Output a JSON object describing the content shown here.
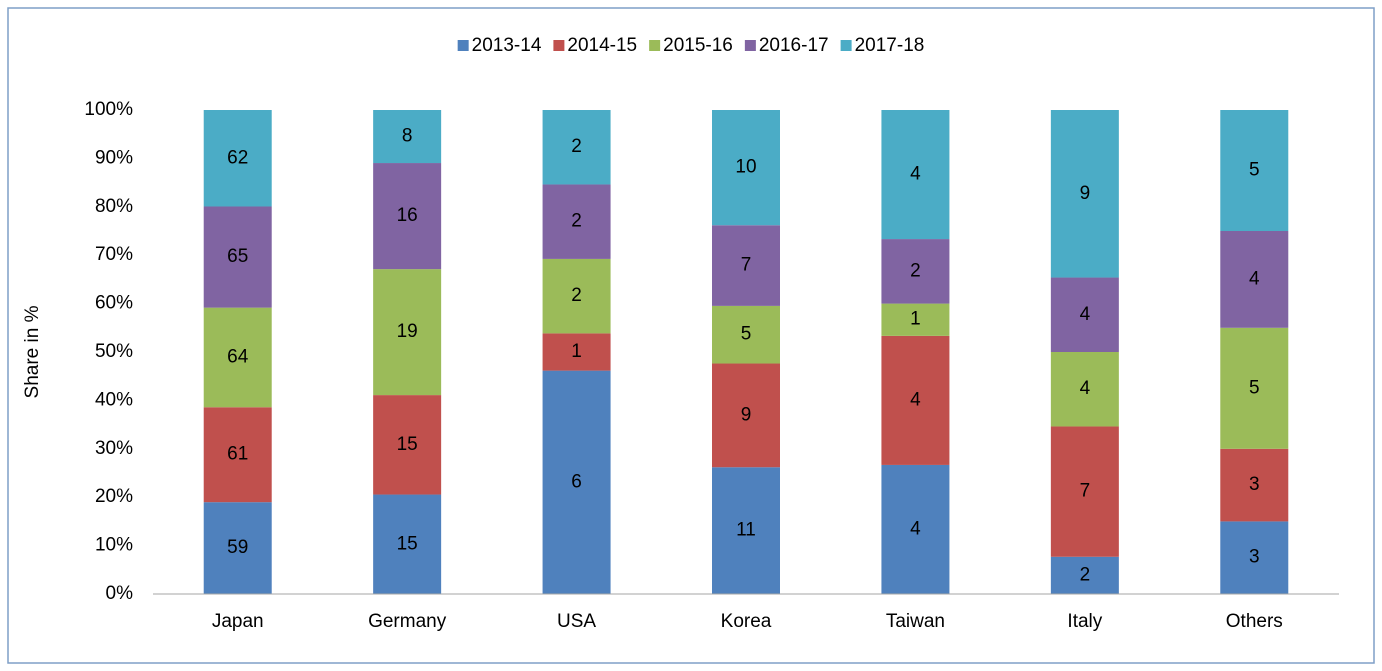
{
  "chart_data": {
    "type": "bar",
    "stacked": "percent",
    "categories": [
      "Japan",
      "Germany",
      "USA",
      "Korea",
      "Taiwan",
      "Italy",
      "Others"
    ],
    "series": [
      {
        "name": "2013-14",
        "color": "#4f81bd",
        "values": [
          59,
          15,
          6,
          11,
          4,
          2,
          3
        ]
      },
      {
        "name": "2014-15",
        "color": "#c0504d",
        "values": [
          61,
          15,
          1,
          9,
          4,
          7,
          3
        ]
      },
      {
        "name": "2015-16",
        "color": "#9bbb59",
        "values": [
          64,
          19,
          2,
          5,
          1,
          4,
          5
        ]
      },
      {
        "name": "2016-17",
        "color": "#8064a2",
        "values": [
          65,
          16,
          2,
          7,
          2,
          4,
          4
        ]
      },
      {
        "name": "2017-18",
        "color": "#4bacc6",
        "values": [
          62,
          8,
          2,
          10,
          4,
          9,
          5
        ]
      }
    ],
    "y_label": "Share in %",
    "ylim": [
      0,
      100
    ],
    "yticks": [
      {
        "value": 0,
        "label": "0%"
      },
      {
        "value": 10,
        "label": "10%"
      },
      {
        "value": 20,
        "label": "20%"
      },
      {
        "value": 30,
        "label": "30%"
      },
      {
        "value": 40,
        "label": "40%"
      },
      {
        "value": 50,
        "label": "50%"
      },
      {
        "value": 60,
        "label": "60%"
      },
      {
        "value": 70,
        "label": "70%"
      },
      {
        "value": 80,
        "label": "80%"
      },
      {
        "value": 90,
        "label": "90%"
      },
      {
        "value": 100,
        "label": "100%"
      }
    ],
    "grid": false,
    "legend": "top"
  }
}
